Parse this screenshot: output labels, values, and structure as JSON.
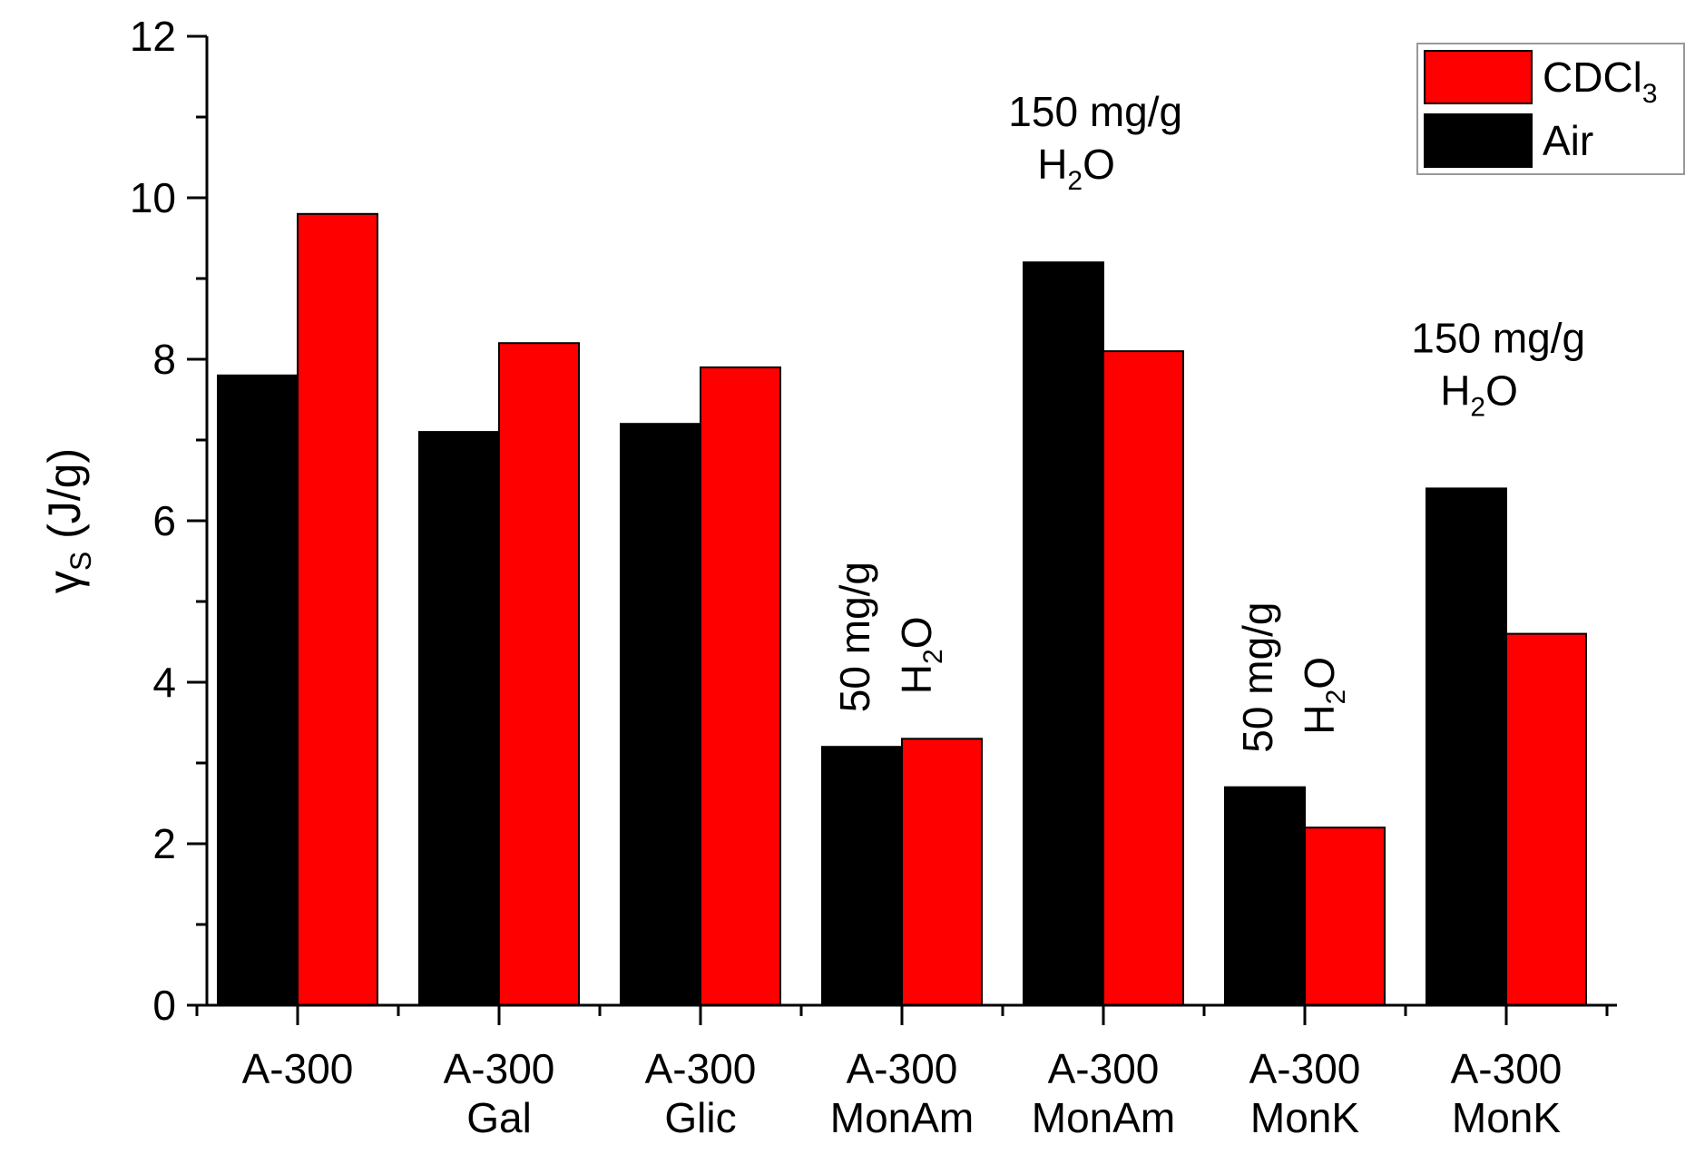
{
  "chart_data": {
    "type": "bar",
    "title": "",
    "xlabel": "",
    "ylabel": {
      "symbol": "γ",
      "subscript": "S",
      "unit": "(J/g)"
    },
    "ylim": [
      0,
      12
    ],
    "yticks": [
      "0",
      "2",
      "4",
      "6",
      "8",
      "10",
      "12"
    ],
    "categories": [
      {
        "line1": "A-300",
        "line2": ""
      },
      {
        "line1": "A-300",
        "line2": "Gal"
      },
      {
        "line1": "A-300",
        "line2": "Glic"
      },
      {
        "line1": "A-300",
        "line2": "MonAm"
      },
      {
        "line1": "A-300",
        "line2": "MonAm"
      },
      {
        "line1": "A-300",
        "line2": "MonK"
      },
      {
        "line1": "A-300",
        "line2": "MonK"
      }
    ],
    "series": [
      {
        "name": "Air",
        "color": "#000000",
        "values": [
          7.8,
          7.1,
          7.2,
          3.2,
          9.2,
          2.7,
          6.4
        ]
      },
      {
        "name": "CDCl",
        "name_sub": "3",
        "color": "#ff0000",
        "values": [
          9.8,
          8.2,
          7.9,
          3.3,
          8.1,
          2.2,
          4.6
        ]
      }
    ],
    "legend": {
      "position": "top-right",
      "entries": [
        {
          "text": "CDCl",
          "sub": "3",
          "color": "#ff0000"
        },
        {
          "text": "Air",
          "sub": "",
          "color": "#000000"
        }
      ]
    },
    "annotations": [
      {
        "category_index": 3,
        "orientation": "vertical",
        "line1": "50 mg/g",
        "line2_main": "H",
        "line2_sub": "2",
        "line2_end": "O"
      },
      {
        "category_index": 4,
        "orientation": "horizontal",
        "line1": "150 mg/g",
        "line2_main": "H",
        "line2_sub": "2",
        "line2_end": "O"
      },
      {
        "category_index": 5,
        "orientation": "vertical",
        "line1": "50 mg/g",
        "line2_main": "H",
        "line2_sub": "2",
        "line2_end": "O"
      },
      {
        "category_index": 6,
        "orientation": "horizontal",
        "line1": "150 mg/g",
        "line2_main": "H",
        "line2_sub": "2",
        "line2_end": "O"
      }
    ]
  }
}
